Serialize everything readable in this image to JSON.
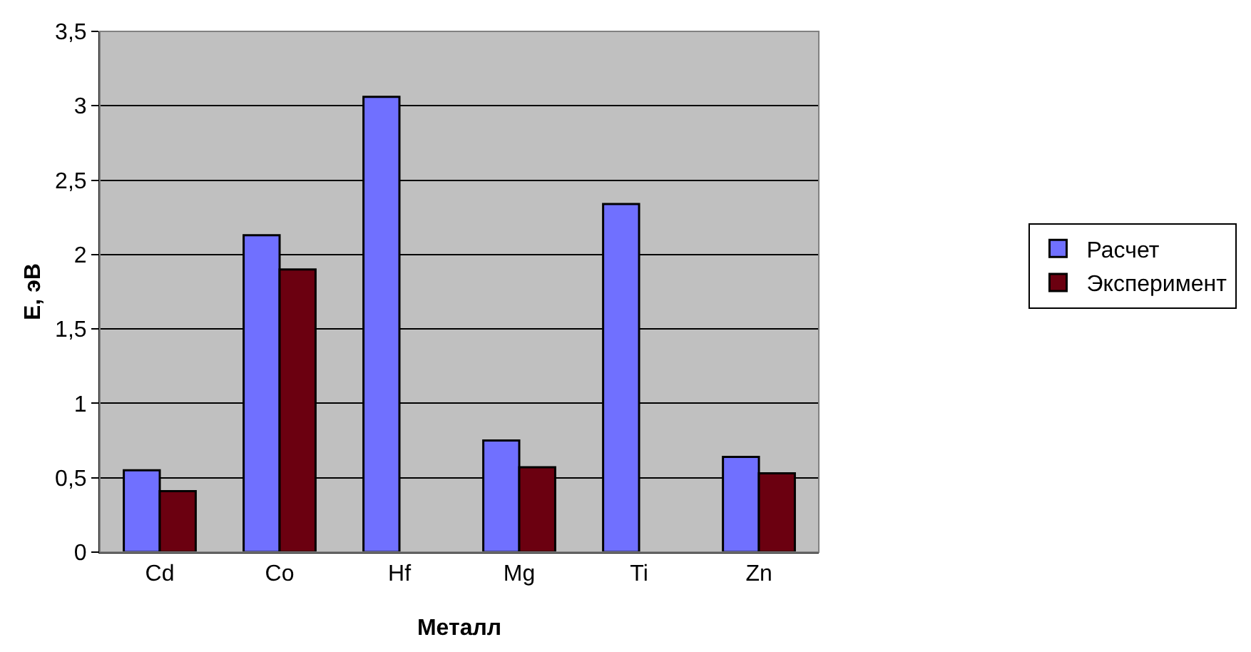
{
  "chart_data": {
    "type": "bar",
    "xlabel": "Металл",
    "ylabel": "E, эВ",
    "categories": [
      "Cd",
      "Co",
      "Hf",
      "Mg",
      "Ti",
      "Zn"
    ],
    "series": [
      {
        "name": "Расчет",
        "color": "#7070ff",
        "values": [
          0.55,
          2.13,
          3.06,
          0.75,
          2.34,
          0.64
        ]
      },
      {
        "name": "Эксперимент",
        "color": "#6b0010",
        "values": [
          0.41,
          1.9,
          null,
          0.57,
          null,
          0.53
        ]
      }
    ],
    "ylim": [
      0,
      3.5
    ],
    "yticks": [
      0,
      {
        "value": 0.5,
        "label": "0,5"
      },
      1,
      {
        "value": 1.5,
        "label": "1,5"
      },
      2,
      {
        "value": 2.5,
        "label": "2,5"
      },
      3,
      {
        "value": 3.5,
        "label": "3,5"
      }
    ],
    "grid": "y",
    "legend": "right"
  }
}
